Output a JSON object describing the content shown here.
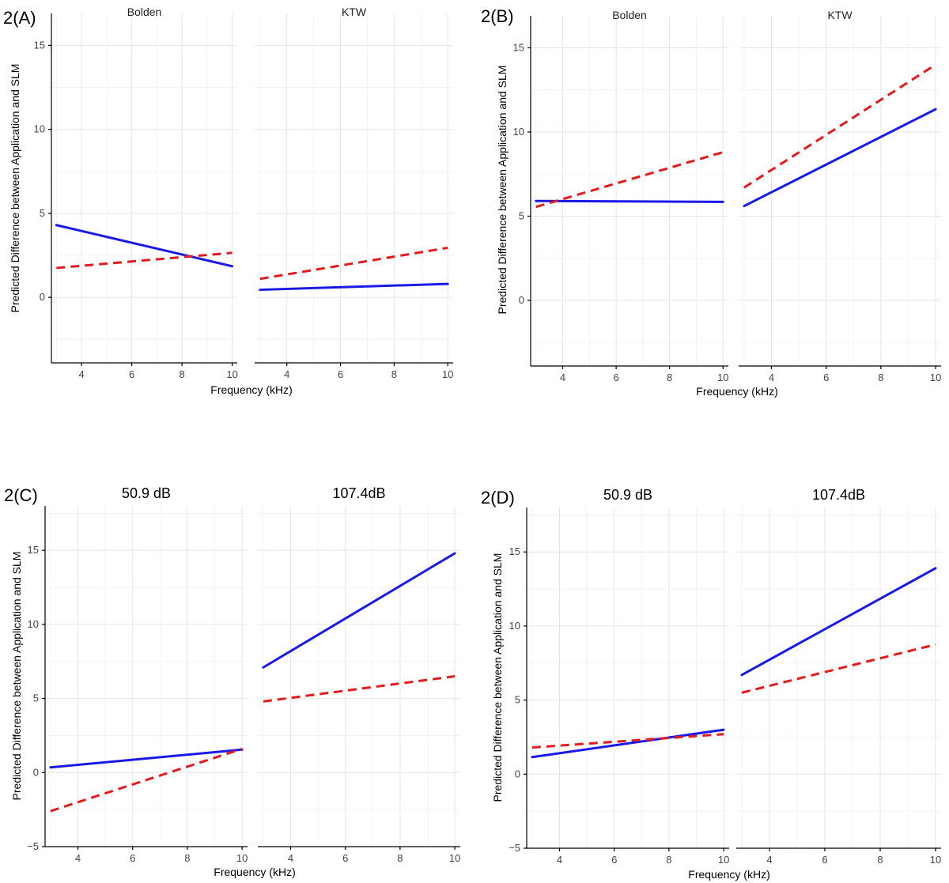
{
  "chart_data": [
    {
      "panel": "2(A)",
      "type": "line",
      "facets": [
        {
          "title": "Bolden",
          "series": [
            {
              "style": "solid",
              "color": "#1a1ae6",
              "x": [
                3,
                10
              ],
              "y": [
                4.3,
                1.85
              ]
            },
            {
              "style": "dashed",
              "color": "#e61a1a",
              "x": [
                3,
                10
              ],
              "y": [
                1.75,
                2.65
              ]
            }
          ]
        },
        {
          "title": "KTW",
          "series": [
            {
              "style": "solid",
              "color": "#1a1ae6",
              "x": [
                3,
                10
              ],
              "y": [
                0.45,
                0.8
              ]
            },
            {
              "style": "dashed",
              "color": "#e61a1a",
              "x": [
                3,
                10
              ],
              "y": [
                1.1,
                2.95
              ]
            }
          ]
        }
      ],
      "xlabel": "Frequency (kHz)",
      "ylabel": "Predicted Difference between Application and SLM",
      "x_ticks": [
        4,
        6,
        8,
        10
      ],
      "y_ticks": [
        0,
        5,
        10,
        15
      ],
      "xlim": [
        2.8,
        10.2
      ],
      "ylim": [
        -3.9,
        16.9
      ]
    },
    {
      "panel": "2(B)",
      "type": "line",
      "facets": [
        {
          "title": "Bolden",
          "series": [
            {
              "style": "solid",
              "color": "#1a1ae6",
              "x": [
                3,
                10
              ],
              "y": [
                5.9,
                5.85
              ]
            },
            {
              "style": "dashed",
              "color": "#e61a1a",
              "x": [
                3,
                10
              ],
              "y": [
                5.55,
                8.8
              ]
            }
          ]
        },
        {
          "title": "KTW",
          "series": [
            {
              "style": "solid",
              "color": "#1a1ae6",
              "x": [
                3,
                10
              ],
              "y": [
                5.6,
                11.35
              ]
            },
            {
              "style": "dashed",
              "color": "#e61a1a",
              "x": [
                3,
                10
              ],
              "y": [
                6.7,
                14.0
              ]
            }
          ]
        }
      ],
      "xlabel": "Frequency (kHz)",
      "ylabel": "Predicted Difference between Application and SLM",
      "x_ticks": [
        4,
        6,
        8,
        10
      ],
      "y_ticks": [
        0,
        5,
        10,
        15
      ],
      "xlim": [
        2.8,
        10.2
      ],
      "ylim": [
        -3.9,
        16.9
      ]
    },
    {
      "panel": "2(C)",
      "type": "line",
      "facets": [
        {
          "title": "50.9 dB",
          "series": [
            {
              "style": "solid",
              "color": "#1a1ae6",
              "x": [
                3,
                10
              ],
              "y": [
                0.35,
                1.55
              ]
            },
            {
              "style": "dashed",
              "color": "#e61a1a",
              "x": [
                3,
                10
              ],
              "y": [
                -2.6,
                1.6
              ]
            }
          ]
        },
        {
          "title": "107.4dB",
          "series": [
            {
              "style": "solid",
              "color": "#1a1ae6",
              "x": [
                3,
                10
              ],
              "y": [
                7.1,
                14.8
              ]
            },
            {
              "style": "dashed",
              "color": "#e61a1a",
              "x": [
                3,
                10
              ],
              "y": [
                4.8,
                6.5
              ]
            }
          ]
        }
      ],
      "xlabel": "Frequency (kHz)",
      "ylabel": "Predicted Difference between Application and SLM",
      "x_ticks": [
        4,
        6,
        8,
        10
      ],
      "y_ticks": [
        -5,
        0,
        5,
        10,
        15
      ],
      "xlim": [
        2.8,
        10.2
      ],
      "ylim": [
        -5,
        18
      ]
    },
    {
      "panel": "2(D)",
      "type": "line",
      "facets": [
        {
          "title": "50.9 dB",
          "series": [
            {
              "style": "solid",
              "color": "#1a1ae6",
              "x": [
                3,
                10
              ],
              "y": [
                1.15,
                3.0
              ]
            },
            {
              "style": "dashed",
              "color": "#e61a1a",
              "x": [
                3,
                10
              ],
              "y": [
                1.8,
                2.7
              ]
            }
          ]
        },
        {
          "title": "107.4dB",
          "series": [
            {
              "style": "solid",
              "color": "#1a1ae6",
              "x": [
                3,
                10
              ],
              "y": [
                6.7,
                13.9
              ]
            },
            {
              "style": "dashed",
              "color": "#e61a1a",
              "x": [
                3,
                10
              ],
              "y": [
                5.5,
                8.75
              ]
            }
          ]
        }
      ],
      "xlabel": "Frequency (kHz)",
      "ylabel": "Predicted Difference between Application and SLM",
      "x_ticks": [
        4,
        6,
        8,
        10
      ],
      "y_ticks": [
        -5,
        0,
        5,
        10,
        15
      ],
      "xlim": [
        2.8,
        10.2
      ],
      "ylim": [
        -5,
        18
      ]
    }
  ]
}
